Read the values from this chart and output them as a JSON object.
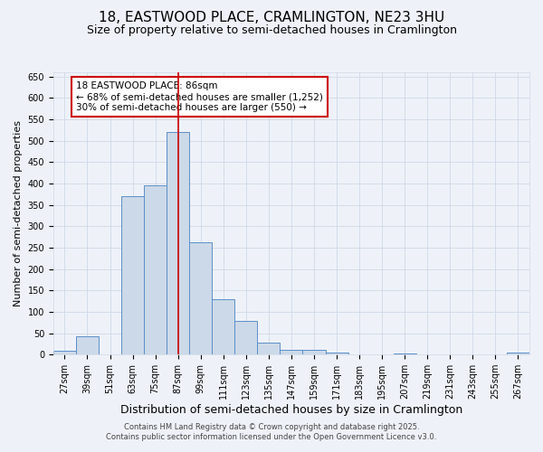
{
  "title_line1": "18, EASTWOOD PLACE, CRAMLINGTON, NE23 3HU",
  "title_line2": "Size of property relative to semi-detached houses in Cramlington",
  "xlabel": "Distribution of semi-detached houses by size in Cramlington",
  "ylabel": "Number of semi-detached properties",
  "categories": [
    "27sqm",
    "39sqm",
    "51sqm",
    "63sqm",
    "75sqm",
    "87sqm",
    "99sqm",
    "111sqm",
    "123sqm",
    "135sqm",
    "147sqm",
    "159sqm",
    "171sqm",
    "183sqm",
    "195sqm",
    "207sqm",
    "219sqm",
    "231sqm",
    "243sqm",
    "255sqm",
    "267sqm"
  ],
  "values": [
    8,
    42,
    0,
    370,
    395,
    520,
    262,
    130,
    78,
    28,
    12,
    10,
    5,
    0,
    0,
    3,
    0,
    0,
    0,
    0,
    4
  ],
  "bar_width": 1.0,
  "bar_facecolor": "#ccd9e8",
  "bar_edgecolor": "#5b8fc9",
  "grid_color": "#d0d8e8",
  "bg_color": "#eef2f8",
  "red_line_x": 5,
  "red_line_color": "#cc0000",
  "annotation_text": "18 EASTWOOD PLACE: 86sqm\n← 68% of semi-detached houses are smaller (1,252)\n30% of semi-detached houses are larger (550) →",
  "annotation_box_edgecolor": "#cc0000",
  "annotation_box_facecolor": "white",
  "ylim": [
    0,
    660
  ],
  "yticks": [
    0,
    50,
    100,
    150,
    200,
    250,
    300,
    350,
    400,
    450,
    500,
    550,
    600,
    650
  ],
  "footer_line1": "Contains HM Land Registry data © Crown copyright and database right 2025.",
  "footer_line2": "Contains public sector information licensed under the Open Government Licence v3.0.",
  "title_fontsize": 11,
  "subtitle_fontsize": 9,
  "xlabel_fontsize": 9,
  "ylabel_fontsize": 8,
  "tick_fontsize": 7,
  "annotation_fontsize": 7.5,
  "footer_fontsize": 6
}
